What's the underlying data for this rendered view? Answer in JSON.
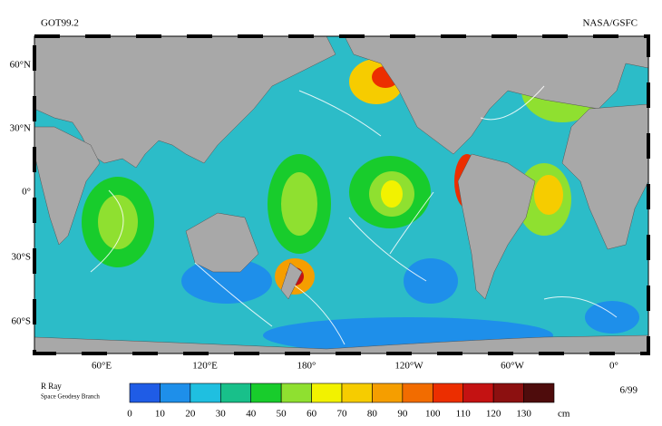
{
  "header": {
    "left": "GOT99.2",
    "right": "NASA/GSFC"
  },
  "map": {
    "lat_labels": [
      "60°N",
      "30°N",
      "0°",
      "30°S",
      "60°S"
    ],
    "lon_labels": [
      "60°E",
      "120°E",
      "180°",
      "120°W",
      "60°W",
      "0°"
    ]
  },
  "credit": {
    "name": "R Ray",
    "branch": "Space Geodesy Branch"
  },
  "date": "6/99",
  "colorbar": {
    "ticks": [
      0,
      10,
      20,
      30,
      40,
      50,
      60,
      70,
      80,
      90,
      100,
      110,
      120,
      130
    ],
    "unit": "cm",
    "colors": [
      "#1f5ce6",
      "#1e8fea",
      "#1fbfe0",
      "#18c08a",
      "#18cc2c",
      "#8fe030",
      "#f2f200",
      "#f6cc00",
      "#f59e00",
      "#f26c00",
      "#ec2e00",
      "#c41212",
      "#8c1010",
      "#4e0c0c"
    ]
  }
}
